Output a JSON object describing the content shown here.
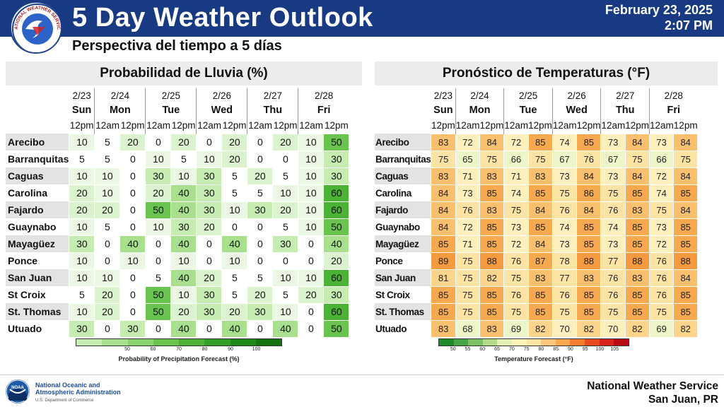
{
  "header": {
    "title": "5 Day Weather Outlook",
    "subtitle": "Perspectiva del tiempo a 5 días",
    "date": "February 23, 2025",
    "time": "2:07 PM",
    "logo_text": "NATIONAL WEATHER SERVICE",
    "bar_color": "#173a82"
  },
  "columns": {
    "days": [
      {
        "date": "2/23",
        "day": "Sun",
        "times": [
          "12pm"
        ]
      },
      {
        "date": "2/24",
        "day": "Mon",
        "times": [
          "12am",
          "12pm"
        ]
      },
      {
        "date": "2/25",
        "day": "Tue",
        "times": [
          "12am",
          "12pm"
        ]
      },
      {
        "date": "2/26",
        "day": "Wed",
        "times": [
          "12am",
          "12pm"
        ]
      },
      {
        "date": "2/27",
        "day": "Thu",
        "times": [
          "12am",
          "12pm"
        ]
      },
      {
        "date": "2/28",
        "day": "Fri",
        "times": [
          "12am",
          "12pm"
        ]
      }
    ]
  },
  "rain": {
    "title": "Probabilidad de Lluvia (%)",
    "rows": [
      {
        "city": "Arecibo",
        "values": [
          10,
          5,
          20,
          0,
          20,
          0,
          20,
          0,
          20,
          10,
          50
        ]
      },
      {
        "city": "Barranquitas",
        "values": [
          5,
          5,
          0,
          10,
          5,
          10,
          20,
          0,
          0,
          10,
          30
        ]
      },
      {
        "city": "Caguas",
        "values": [
          10,
          10,
          0,
          30,
          10,
          30,
          5,
          20,
          5,
          10,
          30
        ]
      },
      {
        "city": "Carolina",
        "values": [
          20,
          10,
          0,
          20,
          40,
          30,
          5,
          5,
          10,
          10,
          60
        ]
      },
      {
        "city": "Fajardo",
        "values": [
          20,
          20,
          0,
          50,
          40,
          30,
          10,
          30,
          20,
          10,
          60
        ]
      },
      {
        "city": "Guaynabo",
        "values": [
          10,
          5,
          0,
          10,
          30,
          20,
          0,
          0,
          5,
          10,
          50
        ]
      },
      {
        "city": "Mayagüez",
        "values": [
          30,
          0,
          40,
          0,
          40,
          0,
          40,
          0,
          30,
          0,
          40
        ]
      },
      {
        "city": "Ponce",
        "values": [
          10,
          0,
          10,
          0,
          10,
          0,
          10,
          0,
          0,
          0,
          20
        ]
      },
      {
        "city": "San Juan",
        "values": [
          10,
          10,
          0,
          5,
          40,
          20,
          5,
          5,
          10,
          10,
          60
        ]
      },
      {
        "city": "St Croix",
        "values": [
          5,
          20,
          0,
          50,
          10,
          30,
          5,
          20,
          5,
          20,
          30
        ]
      },
      {
        "city": "St. Thomas",
        "values": [
          10,
          20,
          0,
          50,
          20,
          30,
          20,
          30,
          10,
          0,
          60
        ]
      },
      {
        "city": "Utuado",
        "values": [
          30,
          0,
          30,
          0,
          40,
          0,
          40,
          0,
          40,
          0,
          50
        ]
      }
    ],
    "legend": {
      "caption": "Probability of Precipitation Forecast (%)",
      "ticks": [
        "50",
        "60",
        "70",
        "80",
        "90",
        "100"
      ],
      "colors": [
        "#c6ecb2",
        "#a8e08e",
        "#88d36b",
        "#68c44c",
        "#4cb236",
        "#339f24",
        "#208a17",
        "#127310"
      ]
    }
  },
  "temperature": {
    "title": "Pronóstico de Temperaturas (°F)",
    "rows": [
      {
        "city": "Arecibo",
        "values": [
          83,
          72,
          84,
          72,
          85,
          74,
          85,
          73,
          84,
          73,
          84
        ]
      },
      {
        "city": "Barranquitas",
        "values": [
          75,
          65,
          75,
          66,
          75,
          67,
          76,
          67,
          75,
          66,
          75
        ]
      },
      {
        "city": "Caguas",
        "values": [
          83,
          71,
          83,
          71,
          83,
          73,
          84,
          73,
          84,
          72,
          84
        ]
      },
      {
        "city": "Carolina",
        "values": [
          84,
          73,
          85,
          74,
          85,
          75,
          86,
          75,
          85,
          74,
          85
        ]
      },
      {
        "city": "Fajardo",
        "values": [
          84,
          76,
          83,
          75,
          84,
          76,
          84,
          76,
          83,
          75,
          84
        ]
      },
      {
        "city": "Guaynabo",
        "values": [
          84,
          72,
          85,
          73,
          85,
          74,
          85,
          74,
          85,
          73,
          85
        ]
      },
      {
        "city": "Mayagüez",
        "values": [
          85,
          71,
          85,
          72,
          84,
          73,
          85,
          73,
          85,
          72,
          85
        ]
      },
      {
        "city": "Ponce",
        "values": [
          89,
          75,
          88,
          76,
          87,
          78,
          88,
          77,
          88,
          76,
          88
        ]
      },
      {
        "city": "San Juan",
        "values": [
          81,
          75,
          82,
          75,
          83,
          77,
          83,
          76,
          83,
          76,
          84
        ]
      },
      {
        "city": "St Croix",
        "values": [
          85,
          75,
          85,
          76,
          85,
          76,
          85,
          76,
          85,
          76,
          85
        ]
      },
      {
        "city": "St. Thomas",
        "values": [
          85,
          75,
          85,
          75,
          85,
          75,
          85,
          75,
          85,
          75,
          85
        ]
      },
      {
        "city": "Utuado",
        "values": [
          83,
          68,
          83,
          69,
          82,
          70,
          82,
          70,
          82,
          69,
          82
        ]
      }
    ],
    "legend": {
      "caption": "Temperature Forecast (°F)",
      "ticks": [
        "50",
        "55",
        "60",
        "65",
        "70",
        "75",
        "80",
        "85",
        "90",
        "95",
        "100",
        "105"
      ],
      "colors": [
        "#1e8a2c",
        "#46a544",
        "#7cc063",
        "#b4db8a",
        "#e4f1b4",
        "#fdf3b6",
        "#fde4a0",
        "#fcc77a",
        "#f9a64c",
        "#f27d2c",
        "#e84c1e",
        "#d8231a",
        "#b80d14"
      ]
    }
  },
  "footer": {
    "noaa_line1": "National Oceanic and",
    "noaa_line2": "Atmospheric Administration",
    "noaa_dept": "U.S. Department of Commerce",
    "noaa_logo_text": "NOAA",
    "nws_line1": "National Weather Service",
    "nws_line2": "San Juan, PR"
  }
}
